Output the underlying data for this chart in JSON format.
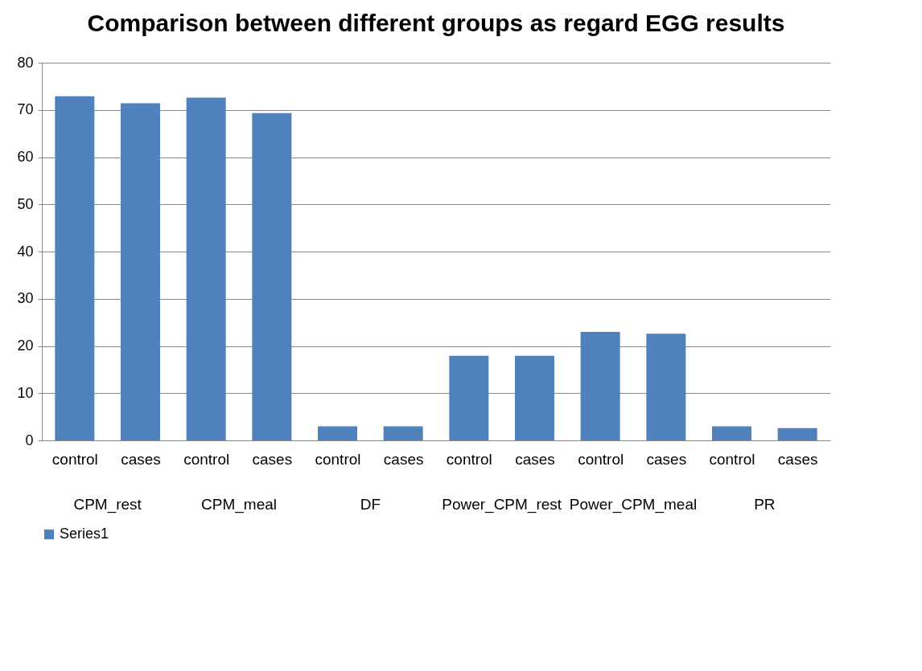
{
  "chart_data": {
    "type": "bar",
    "title": "Comparison between different groups as regard EGG results",
    "categories": [
      "control",
      "cases",
      "control",
      "cases",
      "control",
      "cases",
      "control",
      "cases",
      "control",
      "cases",
      "control",
      "cases"
    ],
    "annotations": [
      "CPM_rest",
      "CPM_meal",
      "DF",
      "Power_CPM_rest",
      "Power_CPM_meal",
      "PR"
    ],
    "series": [
      {
        "name": "Series1",
        "color": "#4f81bd",
        "values": [
          72.9,
          71.4,
          72.6,
          69.3,
          3.0,
          3.0,
          17.9,
          17.9,
          23.0,
          22.6,
          3.0,
          2.6
        ]
      }
    ],
    "ylim": [
      0,
      80
    ],
    "yticks": [
      0,
      10,
      20,
      30,
      40,
      50,
      60,
      70,
      80
    ],
    "grid": "y",
    "legend": "bottom"
  }
}
